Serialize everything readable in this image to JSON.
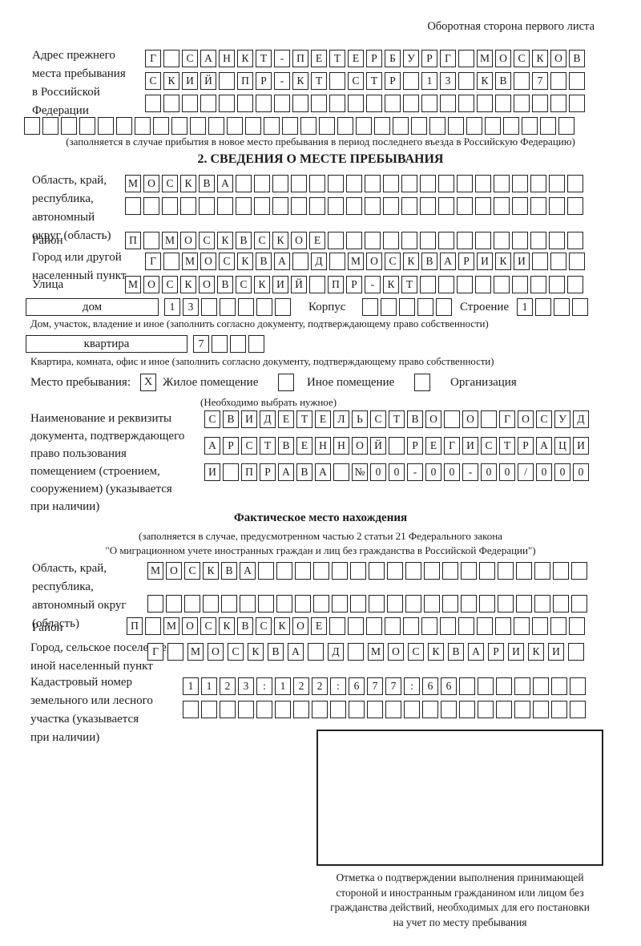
{
  "colors": {
    "ink": "#1b1b1b",
    "paper": "#ffffff"
  },
  "page": {
    "corner_note": "Оборотная сторона первого листа"
  },
  "prev_address": {
    "label_lines": [
      "Адрес прежнего",
      "места пребывания",
      "в Российской",
      "Федерации"
    ],
    "rows": [
      {
        "text": "Г САНКТ-ПЕТЕРБУРГ МОСКОВ",
        "len": 24
      },
      {
        "text": "СКИЙ ПР-КТ СТР 13 КВ 7",
        "len": 24
      },
      {
        "text": "",
        "len": 24
      },
      {
        "text": "",
        "len": 30
      }
    ],
    "note": "(заполняется в случае прибытия в новое место пребывания в период последнего въезда в Российскую Федерацию)"
  },
  "section2": {
    "title": "2. СВЕДЕНИЯ О МЕСТЕ ПРЕБЫВАНИЯ",
    "oblast": {
      "label_lines": [
        "Область, край,",
        "республика,",
        "автономный",
        "округ (область)"
      ],
      "rows": [
        {
          "text": "МОСКВА",
          "len": 25
        },
        {
          "text": "",
          "len": 25
        }
      ]
    },
    "raion": {
      "label": "Район",
      "row": {
        "text": "П МОСКВСКОЕ",
        "len": 25
      }
    },
    "gorod": {
      "label_lines": [
        "Город или другой",
        "населенный пункт"
      ],
      "row": {
        "text": "Г МОСКВА Д МОСКВАРИКИ",
        "len": 24
      }
    },
    "ulitsa": {
      "label": "Улица",
      "row": {
        "text": "МОСКОВСКИЙ ПР-КТ",
        "len": 25
      }
    },
    "dom": {
      "box_label": "дом",
      "row": {
        "text": "13",
        "len": 7
      }
    },
    "korpus": {
      "label": "Корпус",
      "row": {
        "text": "",
        "len": 5
      }
    },
    "stroenie": {
      "label": "Строение",
      "row": {
        "text": "1",
        "len": 4
      }
    },
    "dom_caption": "Дом, участок, владение и иное (заполнить согласно документу, подтверждающему право собственности)",
    "kvartira": {
      "box_label": "квартира",
      "row": {
        "text": "7",
        "len": 4
      }
    },
    "kvartira_caption": "Квартира, комната, офис и иное (заполнить согласно документу, подтверждающему право собственности)",
    "mesto": {
      "label": "Место пребывания:",
      "options": [
        {
          "mark": "Х",
          "label": "Жилое помещение"
        },
        {
          "mark": "",
          "label": "Иное помещение"
        },
        {
          "mark": "",
          "label": "Организация"
        }
      ],
      "note": "(Необходимо выбрать нужное)"
    },
    "doc": {
      "label_lines": [
        "Наименование и реквизиты",
        "документа, подтверждающего",
        "право пользования",
        "помещением (строением,",
        "сооружением) (указывается",
        "при наличии)"
      ],
      "rows": [
        {
          "text": "СВИДЕТЕЛЬСТВО О ГОСУД",
          "len": 21
        },
        {
          "text": "АРСТВЕННОЙ РЕГИСТРАЦИ",
          "len": 21
        },
        {
          "text": "И ПРАВА №00-00-00/000",
          "len": 21
        }
      ]
    }
  },
  "fact": {
    "title": "Фактическое место нахождения",
    "note_lines": [
      "(заполняется в случае, предусмотренном частью 2 статьи 21 Федерального закона",
      "\"О миграционном учете иностранных граждан и лиц без гражданства в Российской Федерации\")"
    ],
    "oblast": {
      "label_lines": [
        "Область, край,",
        "республика,",
        "автономный округ",
        "(область)"
      ],
      "rows": [
        {
          "text": "МОСКВА",
          "len": 24
        },
        {
          "text": "",
          "len": 24
        }
      ]
    },
    "raion": {
      "label": "Район",
      "row": {
        "text": "П МОСКВСКОЕ",
        "len": 25
      }
    },
    "gorod": {
      "label_lines": [
        "Город, сельское поселение,",
        "иной населенный пункт"
      ],
      "row": {
        "text": "Г МОСКВА Д МОСКВАРИКИ",
        "len": 22
      }
    },
    "kadastr": {
      "label_lines": [
        "Кадастровый номер",
        "земельного или лесного",
        "участка (указывается",
        "при наличии)"
      ],
      "rows": [
        {
          "text": "1123:122:677:66",
          "len": 22
        },
        {
          "text": "",
          "len": 22
        }
      ]
    },
    "stamp_caption_lines": [
      "Отметка о подтверждении выполнения принимающей",
      "стороной и иностранным гражданином или лицом без",
      "гражданства действий, необходимых для его постановки",
      "на учет по месту пребывания"
    ]
  }
}
